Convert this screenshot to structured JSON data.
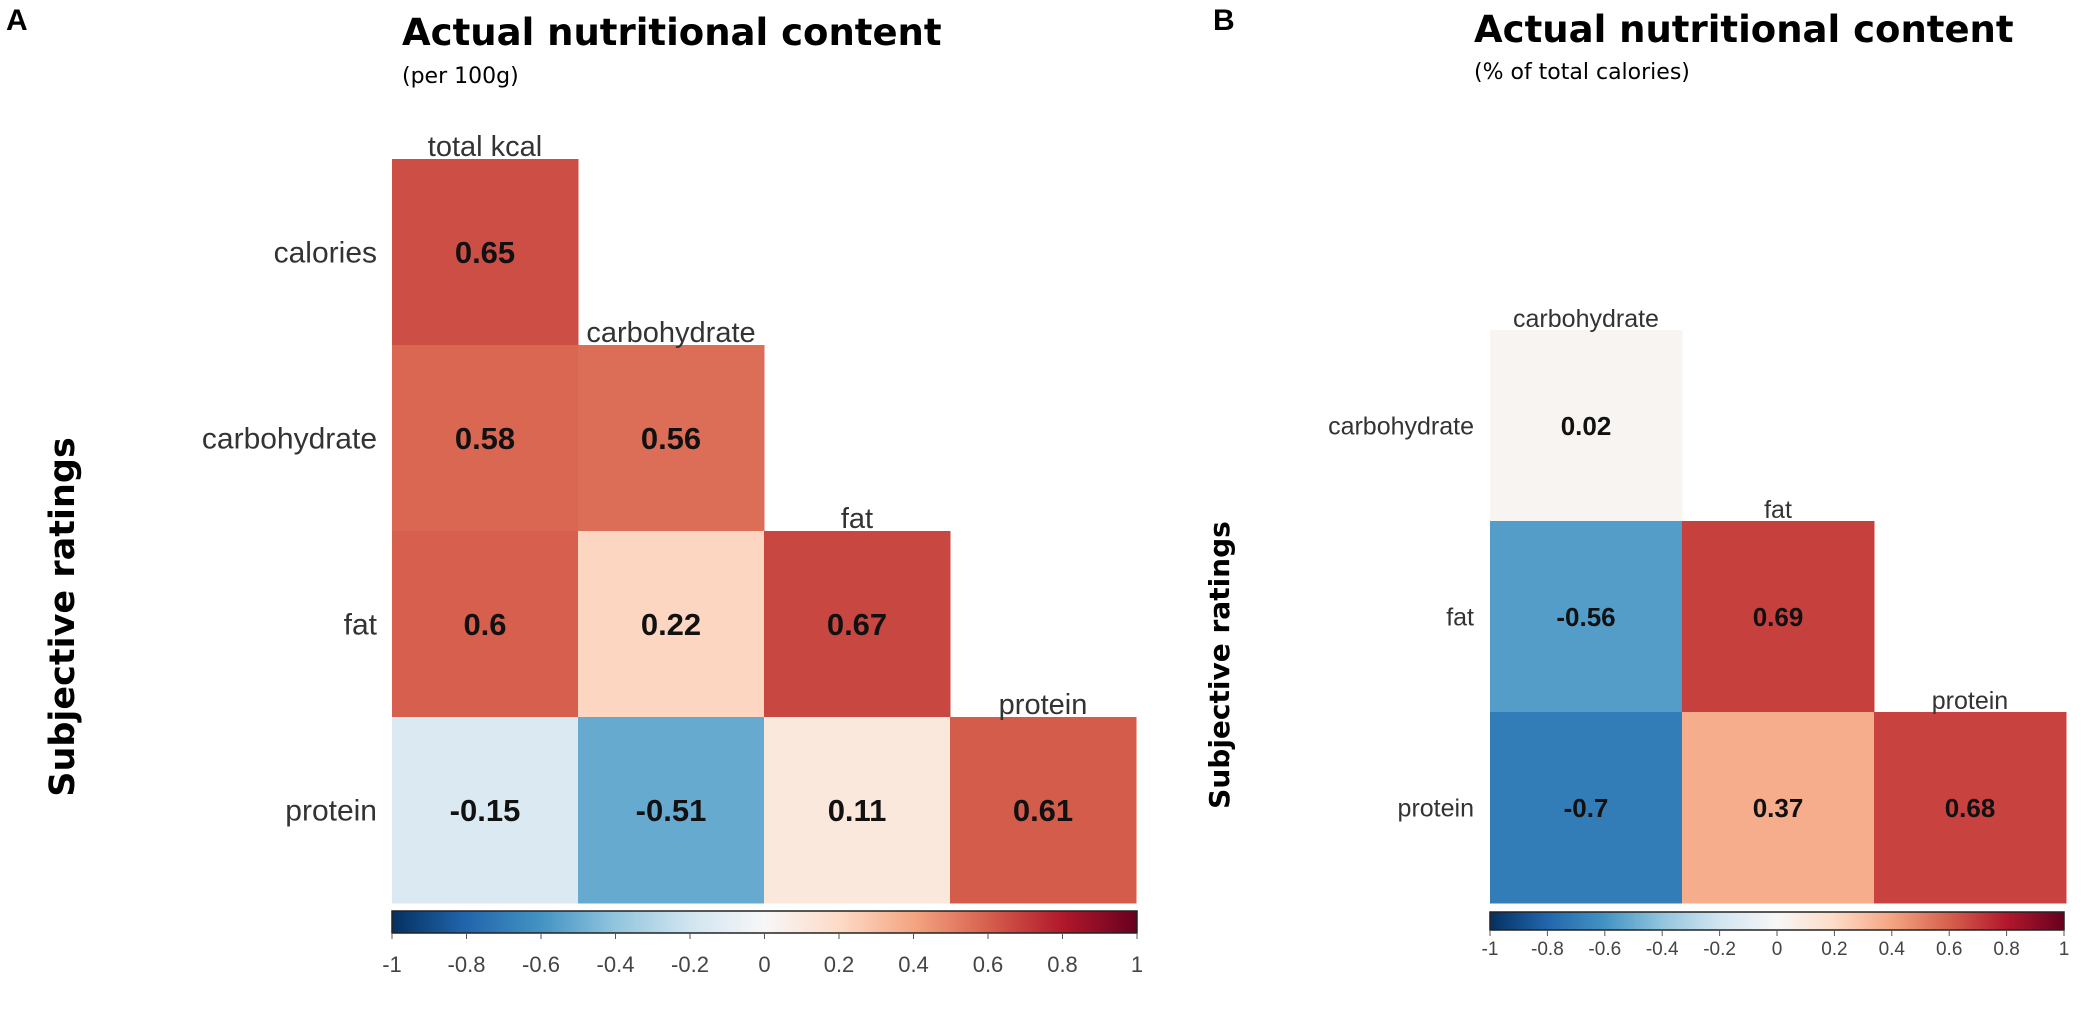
{
  "colors": {
    "scale": [
      "#053061",
      "#2166ac",
      "#4393c3",
      "#92c5de",
      "#d1e5f0",
      "#f7f7f7",
      "#fddbc7",
      "#f4a582",
      "#d6604d",
      "#b2182b",
      "#67001f"
    ]
  },
  "chart_data": [
    {
      "type": "heatmap",
      "panel": "A",
      "title": "Actual nutritional content",
      "subtitle": "(per 100g)",
      "ylabel": "Subjective ratings",
      "columns": [
        "total kcal",
        "carbohydrate",
        "fat",
        "protein"
      ],
      "rows": [
        "calories",
        "carbohydrate",
        "fat",
        "protein"
      ],
      "values": [
        [
          0.65,
          null,
          null,
          null
        ],
        [
          0.58,
          0.56,
          null,
          null
        ],
        [
          0.6,
          0.22,
          0.67,
          null
        ],
        [
          -0.15,
          -0.51,
          0.11,
          0.61
        ]
      ],
      "color_range": [
        -1,
        1
      ],
      "colorbar_ticks": [
        "-1",
        "-0.8",
        "-0.6",
        "-0.4",
        "-0.2",
        "0",
        "0.2",
        "0.4",
        "0.6",
        "0.8",
        "1"
      ]
    },
    {
      "type": "heatmap",
      "panel": "B",
      "title": "Actual nutritional content",
      "subtitle": "(% of total calories)",
      "ylabel": "Subjective ratings",
      "columns": [
        "carbohydrate",
        "fat",
        "protein"
      ],
      "rows": [
        "carbohydrate",
        "fat",
        "protein"
      ],
      "values": [
        [
          0.02,
          null,
          null
        ],
        [
          -0.56,
          0.69,
          null
        ],
        [
          -0.7,
          0.37,
          0.68
        ]
      ],
      "color_range": [
        -1,
        1
      ],
      "colorbar_ticks": [
        "-1",
        "-0.8",
        "-0.6",
        "-0.4",
        "-0.2",
        "0",
        "0.2",
        "0.4",
        "0.6",
        "0.8",
        "1"
      ]
    }
  ]
}
